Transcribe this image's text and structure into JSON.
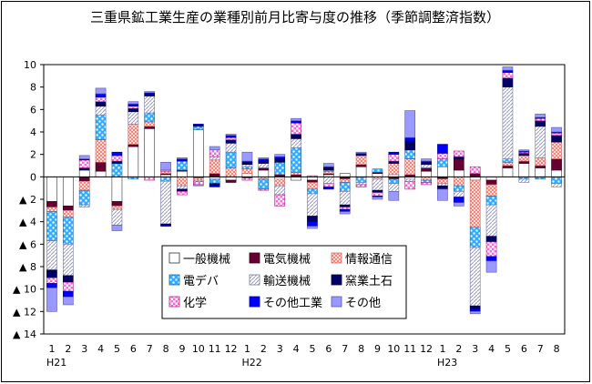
{
  "chart_data": {
    "type": "stacked-bar",
    "title": "三重県鉱工業生産の業種別前月比寄与度の推移（季節調整済指数）",
    "negative_prefix": "▲",
    "ylim": [
      -14,
      10
    ],
    "yticks": [
      10,
      8,
      6,
      4,
      2,
      0,
      -2,
      -4,
      -6,
      -8,
      -10,
      -12,
      -14
    ],
    "ytick_labels": [
      "10",
      "8",
      "6",
      "4",
      "2",
      "0",
      "▲ 2",
      "▲ 4",
      "▲ 6",
      "▲ 8",
      "▲ 10",
      "▲ 12",
      "▲ 14"
    ],
    "categories": [
      "1",
      "2",
      "3",
      "4",
      "5",
      "6",
      "7",
      "8",
      "9",
      "10",
      "11",
      "12",
      "1",
      "2",
      "3",
      "4",
      "5",
      "6",
      "7",
      "8",
      "9",
      "10",
      "11",
      "12",
      "1",
      "2",
      "3",
      "4",
      "5",
      "6",
      "7",
      "8"
    ],
    "year_labels": [
      {
        "index": 0,
        "label": "H21"
      },
      {
        "index": 12,
        "label": "H22"
      },
      {
        "index": 24,
        "label": "H23"
      }
    ],
    "legend_position": "bottom-right-inside",
    "series": [
      {
        "name": "一般機械",
        "values": [
          -2.2,
          -2.6,
          0.6,
          0.5,
          -2.2,
          2.7,
          4.3,
          0.2,
          0.5,
          4.2,
          -0.2,
          -0.3,
          0.3,
          0.6,
          -0.2,
          -0.3,
          -0.3,
          0.2,
          0.3,
          0.9,
          0.3,
          0.2,
          -0.2,
          0.5,
          0.9,
          0.6,
          -0.3,
          -0.3,
          0.8,
          1.2,
          0.8,
          0.6
        ]
      },
      {
        "name": "電気機械",
        "values": [
          -0.5,
          -0.4,
          -0.4,
          0.8,
          -0.4,
          0.2,
          0.2,
          0.1,
          0.1,
          -0.1,
          0.3,
          -0.2,
          -0.1,
          0.2,
          0.2,
          0.2,
          -0.2,
          0.1,
          -0.2,
          0.2,
          0.1,
          -0.2,
          0.2,
          0.3,
          -0.2,
          1.0,
          0.3,
          -0.4,
          0.2,
          0.2,
          0.2,
          1.0
        ]
      },
      {
        "name": "情報通信",
        "values": [
          -0.4,
          -0.6,
          -0.8,
          2.0,
          -0.3,
          1.8,
          0.4,
          0.2,
          -0.8,
          -0.2,
          1.2,
          0.8,
          0.4,
          -0.2,
          -0.6,
          0.2,
          -0.6,
          0.2,
          -0.3,
          0.8,
          -0.2,
          1.0,
          1.4,
          -0.3,
          -0.4,
          -0.8,
          -4.2,
          -1.0,
          0.3,
          0.5,
          0.7,
          1.5
        ]
      },
      {
        "name": "電子デバイス",
        "values": [
          -2.6,
          -2.4,
          -1.3,
          2.2,
          1.2,
          -0.2,
          0.8,
          -0.4,
          0.8,
          0.3,
          -0.4,
          1.4,
          0.2,
          -0.9,
          1.1,
          2.2,
          -0.4,
          0.1,
          -0.8,
          -0.5,
          0.3,
          -0.4,
          0.8,
          -0.2,
          0.7,
          -0.5,
          -1.8,
          -0.8,
          0.3,
          -0.2,
          -0.2,
          -0.6
        ]
      },
      {
        "name": "輸送機械",
        "values": [
          -2.6,
          -2.8,
          -0.2,
          0.8,
          -1.4,
          1.1,
          1.5,
          -3.8,
          -0.3,
          -0.1,
          0.3,
          0.8,
          0.2,
          0.4,
          -0.8,
          0.8,
          -2.0,
          -0.6,
          -1.2,
          -0.2,
          -1.0,
          -0.7,
          -0.2,
          0.3,
          -0.2,
          -0.5,
          -5.2,
          -2.8,
          6.4,
          -0.3,
          2.8,
          -0.3
        ]
      },
      {
        "name": "窯業土石",
        "values": [
          -0.7,
          -0.6,
          0.2,
          0.4,
          0.2,
          0.3,
          0.2,
          -0.1,
          -0.2,
          0.1,
          -0.2,
          0.3,
          0.2,
          0.2,
          0.3,
          0.4,
          -0.5,
          0.3,
          -0.2,
          0.1,
          -0.2,
          0.2,
          0.8,
          0.2,
          -0.3,
          0.2,
          -0.3,
          -0.5,
          0.8,
          0.2,
          0.5,
          0.6
        ]
      },
      {
        "name": "化学",
        "values": [
          -0.5,
          -0.8,
          0.7,
          0.4,
          0.5,
          0.2,
          -0.3,
          0.1,
          -0.3,
          -0.3,
          0.6,
          0.2,
          -0.2,
          -0.1,
          -1.0,
          1.0,
          0.1,
          -0.3,
          -0.2,
          -0.2,
          -0.3,
          0.6,
          -0.7,
          -0.2,
          0.5,
          0.5,
          0.6,
          -1.3,
          0.5,
          0.1,
          0.2,
          0.2
        ]
      },
      {
        "name": "その他工業",
        "values": [
          -0.4,
          -0.5,
          0.1,
          0.3,
          0.3,
          0.2,
          0.1,
          -0.1,
          0.2,
          0.1,
          -0.1,
          0.2,
          0.1,
          0.2,
          0.2,
          0.2,
          -0.4,
          -0.2,
          -0.2,
          0.1,
          -0.1,
          0.2,
          0.3,
          0.1,
          0.8,
          -0.5,
          -0.2,
          -0.4,
          0.2,
          0.1,
          0.1,
          0.1
        ]
      },
      {
        "name": "その他",
        "values": [
          -2.1,
          -0.7,
          0.3,
          0.5,
          -0.5,
          0.2,
          0.1,
          0.7,
          0.1,
          -0.1,
          0.3,
          0.1,
          0.8,
          0.1,
          0.2,
          0.2,
          -0.2,
          0.3,
          -0.2,
          0.1,
          -0.2,
          -0.8,
          2.4,
          0.2,
          -1.0,
          -0.3,
          -0.2,
          -1.0,
          0.3,
          0.1,
          0.3,
          0.4
        ]
      }
    ],
    "legend_labels": [
      "一般機械",
      "電気機械",
      "情報通信",
      "電デバ",
      "輸送機械",
      "窯業土石",
      "化学",
      "その他工業",
      "その他"
    ],
    "colors": [
      "#ffffff",
      "#660033",
      "#ff9999",
      "#3399ff",
      "#ccccff",
      "#000066",
      "#ff33cc",
      "#0000ff",
      "#9999ff"
    ]
  }
}
